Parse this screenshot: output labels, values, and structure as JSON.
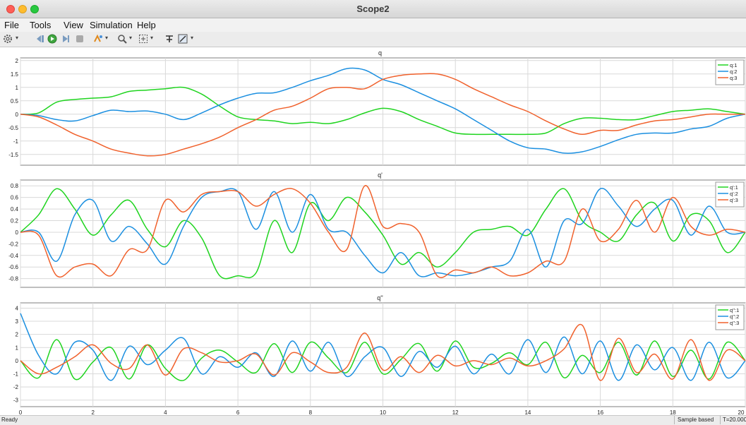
{
  "window": {
    "title": "Scope2"
  },
  "menu": [
    "File",
    "Tools",
    "View",
    "Simulation",
    "Help"
  ],
  "toolbar": {
    "icons": [
      "gear-icon",
      "step-back-icon",
      "run-icon",
      "step-forward-icon",
      "stop-icon",
      "highlight-icon",
      "zoom-icon",
      "fit-icon",
      "cursor-icon",
      "measure-icon"
    ]
  },
  "status": {
    "left": "Ready",
    "mode": "Sample based",
    "time": "T=20.000"
  },
  "colors": {
    "series1": "#1fd41f",
    "series2": "#1b8fe0",
    "series3": "#f0612c",
    "grid": "#d9d9d9"
  },
  "chart_data": [
    {
      "type": "line",
      "title": "q",
      "xlim": [
        0,
        20
      ],
      "ylim": [
        -1.9,
        2.1
      ],
      "xticks": [
        0,
        2,
        4,
        6,
        8,
        10,
        12,
        14,
        16,
        18,
        20
      ],
      "yticks": [
        2,
        1.5,
        1,
        0.5,
        0,
        -0.5,
        -1,
        -1.5
      ],
      "ytick_labels": [
        "2",
        "1.5",
        "1",
        "0.5",
        "0",
        "-0.5",
        "-1",
        "-1.5"
      ],
      "grid": true,
      "legend_position": "top-right",
      "series": [
        {
          "name": "q:1",
          "x": [
            0,
            0.5,
            1,
            1.5,
            2,
            2.5,
            3,
            3.5,
            4,
            4.5,
            5,
            5.5,
            6,
            6.5,
            7,
            7.5,
            8,
            8.5,
            9,
            9.5,
            10,
            10.5,
            11,
            11.5,
            12,
            12.5,
            13,
            13.5,
            14,
            14.5,
            15,
            15.5,
            16,
            16.5,
            17,
            17.5,
            18,
            18.5,
            19,
            19.5,
            20
          ],
          "y": [
            0,
            0.05,
            0.45,
            0.55,
            0.6,
            0.65,
            0.85,
            0.9,
            0.95,
            1.0,
            0.75,
            0.3,
            -0.1,
            -0.2,
            -0.25,
            -0.35,
            -0.3,
            -0.35,
            -0.2,
            0.05,
            0.22,
            0.1,
            -0.2,
            -0.45,
            -0.7,
            -0.75,
            -0.75,
            -0.75,
            -0.75,
            -0.7,
            -0.35,
            -0.15,
            -0.15,
            -0.2,
            -0.2,
            -0.05,
            0.1,
            0.15,
            0.2,
            0.1,
            0.0
          ]
        },
        {
          "name": "q:2",
          "x": [
            0,
            0.5,
            1,
            1.5,
            2,
            2.5,
            3,
            3.5,
            4,
            4.5,
            5,
            5.5,
            6,
            6.5,
            7,
            7.5,
            8,
            8.5,
            9,
            9.5,
            10,
            10.5,
            11,
            11.5,
            12,
            12.5,
            13,
            13.5,
            14,
            14.5,
            15,
            15.5,
            16,
            16.5,
            17,
            17.5,
            18,
            18.5,
            19,
            19.5,
            20
          ],
          "y": [
            0,
            -0.05,
            -0.2,
            -0.25,
            -0.05,
            0.15,
            0.1,
            0.12,
            0.0,
            -0.2,
            0.05,
            0.35,
            0.6,
            0.78,
            0.8,
            1.0,
            1.25,
            1.45,
            1.7,
            1.65,
            1.3,
            1.1,
            0.8,
            0.5,
            0.2,
            -0.2,
            -0.6,
            -1.0,
            -1.25,
            -1.3,
            -1.45,
            -1.4,
            -1.2,
            -0.95,
            -0.75,
            -0.7,
            -0.7,
            -0.55,
            -0.45,
            -0.15,
            0.0
          ]
        },
        {
          "name": "q:3",
          "x": [
            0,
            0.5,
            1,
            1.5,
            2,
            2.5,
            3,
            3.5,
            4,
            4.5,
            5,
            5.5,
            6,
            6.5,
            7,
            7.5,
            8,
            8.5,
            9,
            9.5,
            10,
            10.5,
            11,
            11.5,
            12,
            12.5,
            13,
            13.5,
            14,
            14.5,
            15,
            15.5,
            16,
            16.5,
            17,
            17.5,
            18,
            18.5,
            19,
            19.5,
            20
          ],
          "y": [
            0,
            -0.1,
            -0.4,
            -0.75,
            -1.0,
            -1.3,
            -1.45,
            -1.55,
            -1.5,
            -1.3,
            -1.1,
            -0.85,
            -0.5,
            -0.2,
            0.15,
            0.3,
            0.6,
            0.95,
            1.0,
            0.95,
            1.3,
            1.45,
            1.5,
            1.5,
            1.3,
            0.95,
            0.65,
            0.35,
            0.1,
            -0.25,
            -0.55,
            -0.75,
            -0.6,
            -0.6,
            -0.4,
            -0.25,
            -0.2,
            -0.1,
            0.0,
            0.0,
            0.0
          ]
        }
      ]
    },
    {
      "type": "line",
      "title": "q'",
      "xlim": [
        0,
        20
      ],
      "ylim": [
        -0.95,
        0.9
      ],
      "xticks": [
        0,
        2,
        4,
        6,
        8,
        10,
        12,
        14,
        16,
        18,
        20
      ],
      "yticks": [
        0.8,
        0.6,
        0.4,
        0.2,
        0,
        -0.2,
        -0.4,
        -0.6,
        -0.8
      ],
      "ytick_labels": [
        "0.8",
        "0.6",
        "0.4",
        "0.2",
        "0",
        "-0.2",
        "-0.4",
        "-0.6",
        "-0.8"
      ],
      "grid": true,
      "legend_position": "top-right",
      "series": [
        {
          "name": "q':1",
          "x": [
            0,
            0.5,
            1,
            1.5,
            2,
            2.5,
            3,
            3.5,
            4,
            4.5,
            5,
            5.5,
            6,
            6.5,
            7,
            7.5,
            8,
            8.5,
            9,
            9.5,
            10,
            10.5,
            11,
            11.5,
            12,
            12.5,
            13,
            13.5,
            14,
            14.5,
            15,
            15.5,
            16,
            16.5,
            17,
            17.5,
            18,
            18.5,
            19,
            19.5,
            20
          ],
          "y": [
            0,
            0.3,
            0.75,
            0.4,
            -0.05,
            0.3,
            0.55,
            0.05,
            -0.25,
            0.2,
            -0.1,
            -0.75,
            -0.75,
            -0.7,
            0.2,
            -0.35,
            0.5,
            0.2,
            0.6,
            0.35,
            -0.05,
            -0.55,
            -0.35,
            -0.6,
            -0.35,
            0.0,
            0.05,
            0.1,
            -0.05,
            0.4,
            0.75,
            0.2,
            0.0,
            -0.15,
            0.3,
            0.5,
            -0.15,
            0.3,
            0.2,
            -0.35,
            0.0
          ]
        },
        {
          "name": "q':2",
          "x": [
            0,
            0.5,
            1,
            1.5,
            2,
            2.5,
            3,
            3.5,
            4,
            4.5,
            5,
            5.5,
            6,
            6.5,
            7,
            7.5,
            8,
            8.5,
            9,
            9.5,
            10,
            10.5,
            11,
            11.5,
            12,
            12.5,
            13,
            13.5,
            14,
            14.5,
            15,
            15.5,
            16,
            16.5,
            17,
            17.5,
            18,
            18.5,
            19,
            19.5,
            20
          ],
          "y": [
            0,
            0.0,
            -0.5,
            0.3,
            0.55,
            -0.15,
            0.1,
            -0.2,
            -0.55,
            0.1,
            0.6,
            0.7,
            0.7,
            0.05,
            0.7,
            0.0,
            0.65,
            0.05,
            0.0,
            -0.4,
            -0.7,
            -0.35,
            -0.75,
            -0.7,
            -0.75,
            -0.7,
            -0.6,
            -0.5,
            0.05,
            -0.6,
            0.2,
            0.15,
            0.75,
            0.45,
            0.1,
            0.4,
            0.55,
            -0.05,
            0.45,
            0.0,
            0.0
          ]
        },
        {
          "name": "q':3",
          "x": [
            0,
            0.5,
            1,
            1.5,
            2,
            2.5,
            3,
            3.5,
            4,
            4.5,
            5,
            5.5,
            6,
            6.5,
            7,
            7.5,
            8,
            8.5,
            9,
            9.5,
            10,
            10.5,
            11,
            11.5,
            12,
            12.5,
            13,
            13.5,
            14,
            14.5,
            15,
            15.5,
            16,
            16.5,
            17,
            17.5,
            18,
            18.5,
            19,
            19.5,
            20
          ],
          "y": [
            0,
            -0.05,
            -0.75,
            -0.6,
            -0.55,
            -0.75,
            -0.3,
            -0.3,
            0.55,
            0.35,
            0.65,
            0.7,
            0.7,
            0.45,
            0.65,
            0.75,
            0.5,
            0.0,
            -0.3,
            0.8,
            0.1,
            0.15,
            0.0,
            -0.75,
            -0.65,
            -0.7,
            -0.6,
            -0.75,
            -0.7,
            -0.5,
            -0.5,
            0.4,
            -0.15,
            0.05,
            0.55,
            0.0,
            0.6,
            0.1,
            -0.05,
            0.05,
            0.0
          ]
        }
      ]
    },
    {
      "type": "line",
      "title": "q''",
      "xlim": [
        0,
        20
      ],
      "ylim": [
        -3.5,
        4.4
      ],
      "xticks": [
        0,
        2,
        4,
        6,
        8,
        10,
        12,
        14,
        16,
        18,
        20
      ],
      "xtick_labels": [
        "0",
        "2",
        "4",
        "6",
        "8",
        "10",
        "12",
        "14",
        "16",
        "18",
        "20"
      ],
      "yticks": [
        4,
        3,
        2,
        1,
        0,
        -1,
        -2,
        -3
      ],
      "ytick_labels": [
        "4",
        "3",
        "2",
        "1",
        "0",
        "-1",
        "-2",
        "-3"
      ],
      "grid": true,
      "legend_position": "top-right",
      "series": [
        {
          "name": "q'':1",
          "x": [
            0,
            0.5,
            1,
            1.5,
            2,
            2.5,
            3,
            3.5,
            4,
            4.5,
            5,
            5.5,
            6,
            6.5,
            7,
            7.5,
            8,
            8.5,
            9,
            9.5,
            10,
            10.5,
            11,
            11.5,
            12,
            12.5,
            13,
            13.5,
            14,
            14.5,
            15,
            15.5,
            16,
            16.5,
            17,
            17.5,
            18,
            18.5,
            19,
            19.5,
            20
          ],
          "y": [
            0,
            -1.3,
            1.6,
            -1.4,
            -0.1,
            1.0,
            -1.4,
            1.2,
            -0.6,
            -1.5,
            0.2,
            0.8,
            -0.1,
            -0.9,
            1.3,
            -0.9,
            1.4,
            0.2,
            -0.9,
            1.4,
            -1.0,
            0.1,
            1.3,
            -0.8,
            1.5,
            -0.5,
            -0.2,
            0.6,
            -0.3,
            1.4,
            -1.3,
            0.4,
            -0.9,
            1.4,
            -1.1,
            1.5,
            -1.2,
            0.8,
            -1.4,
            1.4,
            0.0
          ]
        },
        {
          "name": "q'':2",
          "x": [
            0,
            0.5,
            1,
            1.5,
            2,
            2.5,
            3,
            3.5,
            4,
            4.5,
            5,
            5.5,
            6,
            6.5,
            7,
            7.5,
            8,
            8.5,
            9,
            9.5,
            10,
            10.5,
            11,
            11.5,
            12,
            12.5,
            13,
            13.5,
            14,
            14.5,
            15,
            15.5,
            16,
            16.5,
            17,
            17.5,
            18,
            18.5,
            19,
            19.5,
            20
          ],
          "y": [
            3.6,
            0.4,
            -1.0,
            1.4,
            0.8,
            -1.5,
            1.1,
            -0.3,
            0.8,
            1.7,
            -1.0,
            0.3,
            -0.5,
            0.6,
            -1.2,
            1.5,
            -0.8,
            1.4,
            -1.2,
            0.3,
            1.0,
            -1.2,
            0.7,
            -0.5,
            1.1,
            -1.0,
            0.5,
            -1.0,
            1.6,
            -0.9,
            1.8,
            -1.0,
            1.5,
            -1.5,
            1.2,
            -0.7,
            1.0,
            -1.5,
            1.4,
            -1.3,
            0.0
          ]
        },
        {
          "name": "q'':3",
          "x": [
            0,
            0.5,
            1,
            1.5,
            2,
            2.5,
            3,
            3.5,
            4,
            4.5,
            5,
            5.5,
            6,
            6.5,
            7,
            7.5,
            8,
            8.5,
            9,
            9.5,
            10,
            10.5,
            11,
            11.5,
            12,
            12.5,
            13,
            13.5,
            14,
            14.5,
            15,
            15.5,
            16,
            16.5,
            17,
            17.5,
            18,
            18.5,
            19,
            19.5,
            20
          ],
          "y": [
            0,
            -1.0,
            -0.5,
            0.3,
            1.2,
            -0.2,
            -0.6,
            1.2,
            -1.1,
            0.9,
            0.6,
            -0.1,
            0.0,
            0.5,
            -1.1,
            0.6,
            -0.1,
            -0.9,
            -0.5,
            2.1,
            -0.7,
            0.3,
            -0.9,
            0.4,
            -0.4,
            0.0,
            -0.3,
            0.2,
            -0.4,
            0.0,
            0.9,
            2.7,
            -1.5,
            1.7,
            -0.9,
            0.5,
            -1.4,
            1.6,
            -1.5,
            0.8,
            0.0
          ]
        }
      ]
    }
  ]
}
